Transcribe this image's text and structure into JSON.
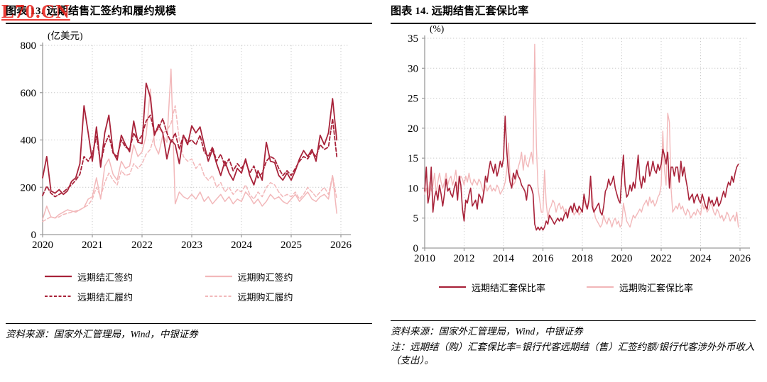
{
  "watermark": {
    "text": "L70.CN",
    "color": "#e8231c"
  },
  "left_panel": {
    "title": "图表 13. 远期结售汇签约和履约规模",
    "source": "资料来源：国家外汇管理局，Wind，中银证券"
  },
  "right_panel": {
    "title": "图表 14. 远期结售汇套保比率",
    "source": "资料来源：国家外汇管理局，Wind，中银证券",
    "note": "注：远期结（购）汇套保比率=银行代客远期结（售）汇签约额/银行代客涉外外币收入（支出）。"
  },
  "colors": {
    "dark_red": "#a8233a",
    "light_pink": "#f2b8ba",
    "axis_gray": "#9a9a9a",
    "grid_gray": "#c9c9c9",
    "watermark_red": "#e8231c"
  },
  "chart_data": [
    {
      "type": "line",
      "title": "远期结售汇签约和履约规模",
      "unit_label": "(亿美元)",
      "ylabel": "亿美元",
      "ylim": [
        0,
        800
      ],
      "yticks": [
        0,
        200,
        400,
        600,
        800
      ],
      "xticks": [
        2020,
        2021,
        2022,
        2023,
        2024,
        2025,
        2026
      ],
      "x_start": 2020.0,
      "x_step_months": 1,
      "grid": "dotted",
      "legend_position": "bottom",
      "legend_order": [
        3,
        1,
        2,
        0
      ],
      "series": [
        {
          "name": "远期购汇履约",
          "color": "#f2b8ba",
          "dash": "dashed",
          "width": 1.5,
          "values": [
            55,
            65,
            75,
            70,
            75,
            85,
            90,
            95,
            100,
            105,
            115,
            125,
            150,
            200,
            160,
            220,
            260,
            230,
            210,
            270,
            250,
            255,
            300,
            280,
            300,
            340,
            360,
            420,
            450,
            430,
            440,
            470,
            545,
            400,
            330,
            310,
            320,
            280,
            300,
            250,
            230,
            250,
            200,
            220,
            180,
            200,
            170,
            190,
            180,
            210,
            170,
            150,
            180,
            160,
            200,
            220,
            210,
            180,
            160,
            170,
            160,
            180,
            150,
            170,
            200,
            180,
            160,
            180,
            200,
            170,
            250,
            150
          ]
        },
        {
          "name": "远期购汇签约",
          "color": "#f2b8ba",
          "dash": "solid",
          "width": 1.5,
          "values": [
            65,
            120,
            75,
            70,
            85,
            95,
            105,
            100,
            95,
            105,
            115,
            150,
            160,
            240,
            150,
            290,
            320,
            255,
            230,
            310,
            280,
            290,
            380,
            330,
            350,
            420,
            615,
            380,
            340,
            420,
            390,
            700,
            130,
            180,
            160,
            150,
            170,
            150,
            180,
            140,
            160,
            130,
            150,
            170,
            140,
            160,
            130,
            150,
            140,
            180,
            160,
            130,
            150,
            120,
            140,
            170,
            150,
            160,
            140,
            130,
            150,
            170,
            140,
            160,
            180,
            150,
            140,
            160,
            170,
            150,
            250,
            90
          ]
        },
        {
          "name": "远期结汇履约",
          "color": "#a8233a",
          "dash": "dashed",
          "width": 1.8,
          "values": [
            165,
            205,
            175,
            160,
            170,
            180,
            195,
            210,
            230,
            255,
            330,
            310,
            340,
            415,
            300,
            380,
            420,
            345,
            330,
            400,
            370,
            360,
            430,
            395,
            420,
            480,
            505,
            430,
            450,
            490,
            430,
            390,
            430,
            360,
            420,
            390,
            400,
            380,
            420,
            350,
            330,
            370,
            310,
            340,
            290,
            320,
            270,
            300,
            280,
            310,
            260,
            290,
            240,
            260,
            310,
            330,
            320,
            280,
            250,
            270,
            250,
            280,
            310,
            330,
            320,
            350,
            330,
            380,
            360,
            370,
            490,
            330
          ]
        },
        {
          "name": "远期结汇签约",
          "color": "#a8233a",
          "dash": "solid",
          "width": 1.8,
          "values": [
            240,
            330,
            185,
            175,
            190,
            170,
            185,
            225,
            240,
            300,
            545,
            430,
            310,
            455,
            285,
            430,
            505,
            350,
            315,
            420,
            380,
            350,
            480,
            390,
            385,
            640,
            580,
            420,
            465,
            430,
            320,
            400,
            380,
            300,
            420,
            380,
            460,
            430,
            455,
            380,
            310,
            360,
            300,
            250,
            310,
            260,
            230,
            280,
            260,
            320,
            250,
            210,
            270,
            230,
            390,
            310,
            305,
            250,
            230,
            260,
            230,
            270,
            320,
            355,
            330,
            360,
            310,
            420,
            380,
            430,
            575,
            400
          ]
        }
      ]
    },
    {
      "type": "line",
      "title": "远期结售汇套保比率",
      "unit_label": "(%)",
      "ylabel": "%",
      "ylim": [
        0,
        35
      ],
      "yticks": [
        0,
        5,
        10,
        15,
        20,
        25,
        30,
        35
      ],
      "xticks": [
        2010,
        2012,
        2014,
        2016,
        2018,
        2020,
        2022,
        2024,
        2026
      ],
      "x_start": 2010.0,
      "x_step_months": 1,
      "grid": "dotted",
      "legend_position": "bottom",
      "legend_order": [
        1,
        0
      ],
      "series": [
        {
          "name": "远期购汇套保比率",
          "color": "#f2b8ba",
          "dash": "solid",
          "width": 1.4,
          "values": [
            9,
            10,
            8.5,
            11,
            9.5,
            10.5,
            12.5,
            9,
            11,
            12.5,
            11,
            10,
            11,
            12.5,
            10.5,
            11.5,
            12,
            10.5,
            11.5,
            13,
            10,
            11,
            12,
            11.5,
            10.5,
            12,
            11,
            12.5,
            11,
            10.5,
            11.5,
            11,
            10.5,
            11.5,
            11,
            10,
            9,
            10.5,
            9.5,
            10,
            10.5,
            9.5,
            10,
            9.5,
            10.5,
            10,
            9,
            9.5,
            10,
            11,
            13,
            17.5,
            12,
            11.5,
            10.5,
            11,
            12,
            13.5,
            14.5,
            16,
            13,
            15.5,
            14,
            13.5,
            15,
            16,
            14,
            34,
            17,
            10,
            8,
            6,
            6,
            13,
            7.5,
            5,
            6.5,
            7,
            8,
            7.5,
            6,
            7,
            7.5,
            6.5,
            7,
            6,
            6.5,
            5.5,
            6,
            7,
            6.5,
            5.5,
            6,
            6.5,
            5.5,
            6,
            6.5,
            8,
            7,
            6.5,
            7.5,
            11.5,
            9,
            6.5,
            5,
            4.5,
            4,
            3.5,
            4,
            5.5,
            4.5,
            4,
            5,
            4.5,
            3.5,
            4.5,
            5,
            4,
            4.5,
            3.5,
            4,
            7.5,
            6,
            4.5,
            4,
            3.5,
            4.5,
            5.5,
            5,
            5.5,
            6,
            6.5,
            6,
            7,
            7.5,
            8,
            7,
            8.5,
            7.5,
            8,
            7,
            7.5,
            8.5,
            9,
            10.5,
            19.5,
            13,
            10.5,
            22.5,
            21,
            10,
            6,
            6.5,
            7,
            6.5,
            7.5,
            6.5,
            7,
            6,
            5.5,
            6.5,
            6,
            5,
            5.5,
            6,
            5.5,
            6.5,
            6,
            5.5,
            7.5,
            6.5,
            7,
            6,
            6.5,
            7.5,
            7,
            6,
            5.5,
            6.5,
            6,
            5,
            5.5,
            4.5,
            5,
            6,
            5.5,
            4.5,
            5,
            5.5,
            4.5,
            6,
            3.5
          ]
        },
        {
          "name": "远期结汇套保比率",
          "color": "#a8233a",
          "dash": "solid",
          "width": 1.6,
          "values": [
            9.5,
            13.5,
            7.5,
            9,
            13.5,
            6,
            8.5,
            9.5,
            8,
            10.5,
            9,
            7,
            9,
            11.5,
            9.5,
            10,
            9,
            8.5,
            10,
            11,
            8,
            12,
            10.5,
            6.5,
            4.5,
            8,
            7.5,
            9,
            10,
            7,
            7.5,
            8,
            6.5,
            9,
            8.5,
            7.5,
            9.5,
            12,
            11,
            13,
            14.5,
            13.5,
            12.5,
            14,
            12,
            13,
            14.5,
            13.5,
            15,
            22,
            16,
            13,
            11,
            10,
            12.5,
            11.5,
            13,
            12,
            11.5,
            10.5,
            10,
            9.5,
            8,
            10.5,
            10.5,
            10,
            9,
            4,
            3,
            3.5,
            3,
            3.5,
            3,
            3.5,
            4.5,
            4,
            5.5,
            5,
            4.5,
            4,
            4.5,
            5,
            4.5,
            5,
            4.5,
            5.5,
            6,
            5,
            6.5,
            7,
            6,
            7.5,
            6.5,
            6,
            7,
            6.5,
            6,
            9,
            7.5,
            6.5,
            8,
            12,
            7,
            6,
            6.5,
            7,
            7.5,
            6,
            5.5,
            7,
            9.5,
            10,
            11.5,
            10.5,
            11,
            12,
            10,
            9,
            8,
            7.5,
            12,
            15.5,
            10.5,
            8.5,
            9,
            10.5,
            9.5,
            11,
            10,
            12.5,
            15.5,
            11.5,
            10,
            12,
            11,
            13.5,
            14.5,
            12,
            13,
            14.5,
            13,
            12.5,
            14,
            13,
            14,
            16.5,
            15.5,
            14,
            16,
            10,
            13.5,
            13.5,
            12,
            13.5,
            13.5,
            11,
            14.5,
            12,
            13.5,
            11.5,
            10,
            8,
            8.5,
            9,
            7.5,
            8.5,
            9,
            8,
            7.5,
            9,
            8,
            7,
            6.5,
            8.5,
            7.5,
            8,
            7,
            7.5,
            8.5,
            7,
            7.5,
            8.5,
            9.5,
            8.5,
            10,
            11,
            10.5,
            12,
            11,
            12.5,
            13.5,
            14
          ]
        }
      ]
    }
  ]
}
